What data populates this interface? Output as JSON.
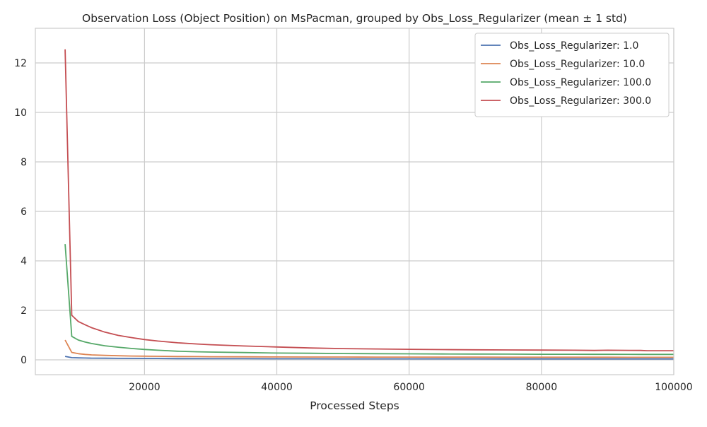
{
  "chart_data": {
    "type": "line",
    "title": "Observation Loss (Object Position) on MsPacman, grouped by Obs_Loss_Regularizer (mean ± 1 std)",
    "xlabel": "Processed Steps",
    "ylabel": "",
    "xlim": [
      3500,
      100000
    ],
    "ylim": [
      -0.6,
      13.4
    ],
    "xticks": [
      20000,
      40000,
      60000,
      80000,
      100000
    ],
    "xtick_labels": [
      "20000",
      "40000",
      "60000",
      "80000",
      "100000"
    ],
    "yticks": [
      0,
      2,
      4,
      6,
      8,
      10,
      12
    ],
    "ytick_labels": [
      "0",
      "2",
      "4",
      "6",
      "8",
      "10",
      "12"
    ],
    "grid": true,
    "legend_position": "top-right",
    "x": [
      8000,
      9000,
      10000,
      11000,
      12000,
      14000,
      16000,
      18000,
      20000,
      22000,
      25000,
      28000,
      30000,
      35000,
      40000,
      45000,
      50000,
      55000,
      60000,
      65000,
      70000,
      75000,
      80000,
      85000,
      88000,
      90000,
      95000,
      96000,
      100000
    ],
    "series": [
      {
        "name": "Obs_Loss_Regularizer: 1.0",
        "color": "#4c72b0",
        "values": [
          0.14,
          0.09,
          0.08,
          0.075,
          0.07,
          0.065,
          0.06,
          0.057,
          0.055,
          0.053,
          0.05,
          0.048,
          0.047,
          0.045,
          0.043,
          0.042,
          0.041,
          0.04,
          0.04,
          0.039,
          0.039,
          0.038,
          0.038,
          0.038,
          0.037,
          0.037,
          0.037,
          0.037,
          0.037
        ]
      },
      {
        "name": "Obs_Loss_Regularizer: 10.0",
        "color": "#dd8452",
        "values": [
          0.8,
          0.3,
          0.25,
          0.22,
          0.2,
          0.18,
          0.165,
          0.155,
          0.148,
          0.142,
          0.135,
          0.13,
          0.127,
          0.122,
          0.118,
          0.115,
          0.113,
          0.111,
          0.11,
          0.109,
          0.108,
          0.107,
          0.106,
          0.105,
          0.105,
          0.105,
          0.104,
          0.104,
          0.104
        ]
      },
      {
        "name": "Obs_Loss_Regularizer: 100.0",
        "color": "#55a868",
        "values": [
          4.68,
          0.95,
          0.8,
          0.72,
          0.66,
          0.57,
          0.51,
          0.46,
          0.42,
          0.39,
          0.35,
          0.325,
          0.315,
          0.295,
          0.275,
          0.265,
          0.255,
          0.248,
          0.243,
          0.238,
          0.234,
          0.23,
          0.227,
          0.225,
          0.223,
          0.222,
          0.22,
          0.22,
          0.22
        ]
      },
      {
        "name": "Obs_Loss_Regularizer: 300.0",
        "color": "#c44e52",
        "values": [
          12.55,
          1.8,
          1.55,
          1.42,
          1.3,
          1.12,
          0.99,
          0.9,
          0.82,
          0.76,
          0.69,
          0.64,
          0.61,
          0.56,
          0.52,
          0.48,
          0.455,
          0.44,
          0.425,
          0.415,
          0.405,
          0.4,
          0.395,
          0.39,
          0.38,
          0.39,
          0.38,
          0.37,
          0.37
        ]
      }
    ]
  }
}
